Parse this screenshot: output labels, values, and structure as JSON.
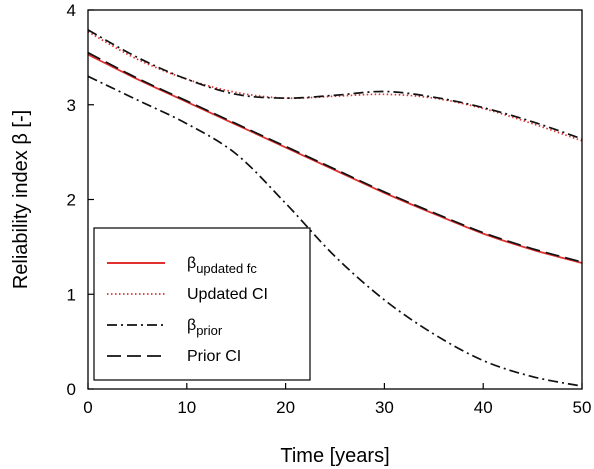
{
  "chart_data": {
    "type": "line",
    "xlabel": "Time [years]",
    "ylabel": "Reliability index β [-]",
    "xlim": [
      0,
      50
    ],
    "ylim": [
      0,
      4
    ],
    "xticks": [
      0,
      10,
      20,
      30,
      40,
      50
    ],
    "yticks": [
      0,
      1,
      2,
      3,
      4
    ],
    "grid": false,
    "legend_position": "bottom-left",
    "x": [
      0,
      5,
      10,
      15,
      20,
      25,
      30,
      35,
      40,
      45,
      50
    ],
    "series": [
      {
        "name": "β",
        "name_sub": "updated fc",
        "color": "#e03030",
        "style": "solid",
        "values": [
          3.53,
          3.27,
          3.03,
          2.79,
          2.55,
          2.31,
          2.07,
          1.85,
          1.64,
          1.47,
          1.33
        ]
      },
      {
        "name": "Updated CI",
        "color": "#e03030",
        "style": "dotted",
        "values": [
          3.77,
          3.48,
          3.27,
          3.13,
          3.07,
          3.09,
          3.11,
          3.07,
          2.96,
          2.8,
          2.62
        ]
      },
      {
        "name": "β",
        "name_sub": "prior",
        "color": "#111111",
        "style": "dashdot",
        "values": [
          3.3,
          3.05,
          2.8,
          2.48,
          1.96,
          1.4,
          0.94,
          0.58,
          0.3,
          0.13,
          0.03
        ]
      },
      {
        "name": "Prior CI",
        "color": "#111111",
        "style": "dashed",
        "values": [
          3.55,
          3.28,
          3.04,
          2.8,
          2.56,
          2.32,
          2.08,
          1.86,
          1.65,
          1.48,
          1.34
        ]
      },
      {
        "name": "",
        "color": "#111111",
        "style": "dashdot",
        "values": [
          3.79,
          3.5,
          3.27,
          3.11,
          3.07,
          3.1,
          3.14,
          3.08,
          2.97,
          2.82,
          2.64
        ]
      }
    ]
  }
}
